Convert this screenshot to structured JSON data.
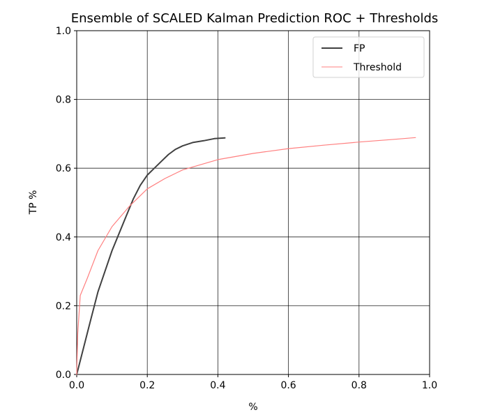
{
  "chart_data": {
    "type": "line",
    "title": "Ensemble of SCALED Kalman Prediction ROC + Thresholds",
    "xlabel": "%",
    "ylabel": "TP %",
    "xlim": [
      0.0,
      1.0
    ],
    "ylim": [
      0.0,
      1.0
    ],
    "x_ticks": [
      "0.0",
      "0.2",
      "0.4",
      "0.6",
      "0.8",
      "1.0"
    ],
    "y_ticks": [
      "0.0",
      "0.2",
      "0.4",
      "0.6",
      "0.8",
      "1.0"
    ],
    "grid": true,
    "legend_position": "top-right",
    "series": [
      {
        "name": "FP",
        "color": "#404040",
        "x": [
          0.0,
          0.02,
          0.04,
          0.06,
          0.08,
          0.1,
          0.12,
          0.14,
          0.16,
          0.18,
          0.2,
          0.22,
          0.24,
          0.26,
          0.28,
          0.3,
          0.33,
          0.36,
          0.39,
          0.42
        ],
        "y": [
          0.0,
          0.08,
          0.16,
          0.24,
          0.3,
          0.36,
          0.41,
          0.46,
          0.51,
          0.55,
          0.58,
          0.6,
          0.62,
          0.64,
          0.655,
          0.665,
          0.675,
          0.68,
          0.686,
          0.688
        ]
      },
      {
        "name": "Threshold",
        "color": "#ff7f7f",
        "x": [
          0.0,
          0.003,
          0.01,
          0.03,
          0.06,
          0.1,
          0.15,
          0.2,
          0.25,
          0.3,
          0.4,
          0.5,
          0.6,
          0.7,
          0.8,
          0.9,
          0.96
        ],
        "y": [
          0.0,
          0.12,
          0.23,
          0.28,
          0.36,
          0.43,
          0.49,
          0.54,
          0.57,
          0.595,
          0.625,
          0.643,
          0.657,
          0.667,
          0.676,
          0.684,
          0.689
        ]
      }
    ]
  }
}
